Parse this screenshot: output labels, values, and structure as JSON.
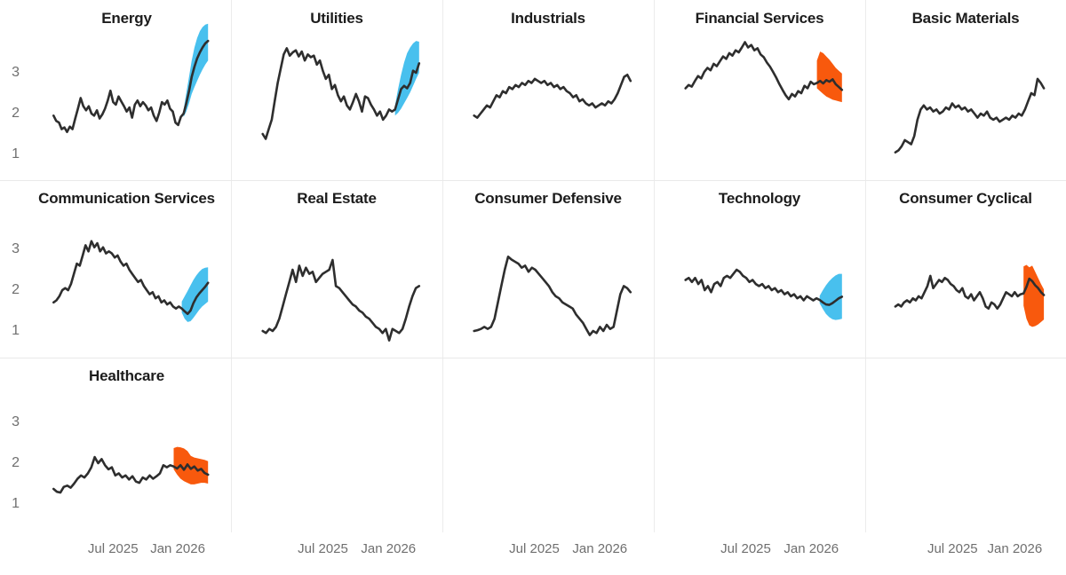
{
  "colors": {
    "history_line": "#2e2e2e",
    "forecast_up_band": "#48c0ee",
    "forecast_down_band": "#f8590d",
    "separator": "#ececec",
    "tick_label": "#6f6f6f",
    "title": "#1c1c1c"
  },
  "chart_data": {
    "type": "line",
    "title": "",
    "description": "Small-multiples of sector time series with shaded forecast bands (blue = upward forecast, orange = downward forecast)",
    "grid": {
      "rows": 3,
      "cols": 5
    },
    "x_axis": {
      "tick_labels": [
        "Jul 2025",
        "Jan 2026"
      ]
    },
    "y_axis": {
      "tick_labels": [
        3,
        2,
        1
      ],
      "range": [
        0.5,
        4.3
      ]
    },
    "facets": [
      {
        "title": "Energy",
        "row": 0,
        "col": 0,
        "forecast_direction": "up",
        "history": [
          1.95,
          1.82,
          1.78,
          1.62,
          1.66,
          1.55,
          1.68,
          1.62,
          1.88,
          2.12,
          2.38,
          2.18,
          2.08,
          2.18,
          2.0,
          1.95,
          2.08,
          1.88,
          1.98,
          2.12,
          2.32,
          2.56,
          2.28,
          2.22,
          2.42,
          2.3,
          2.18,
          2.05,
          2.15,
          1.9,
          2.22,
          2.32,
          2.18,
          2.28,
          2.2,
          2.08,
          2.15,
          1.95,
          1.82,
          2.02,
          2.28,
          2.22,
          2.32,
          2.12,
          2.05,
          1.78,
          1.72,
          1.92
        ],
        "forecast": {
          "mid": [
            2.0,
            2.25,
            2.55,
            2.9,
            3.15,
            3.35,
            3.5,
            3.62,
            3.72,
            3.78
          ],
          "lower": [
            1.92,
            2.05,
            2.25,
            2.48,
            2.65,
            2.8,
            2.95,
            3.08,
            3.2,
            3.3
          ],
          "upper": [
            2.1,
            2.5,
            2.9,
            3.3,
            3.62,
            3.85,
            4.02,
            4.12,
            4.18,
            4.2
          ]
        }
      },
      {
        "title": "Utilities",
        "row": 0,
        "col": 1,
        "forecast_direction": "up",
        "history": [
          1.5,
          1.38,
          1.62,
          1.85,
          2.3,
          2.75,
          3.1,
          3.45,
          3.6,
          3.42,
          3.5,
          3.55,
          3.4,
          3.52,
          3.3,
          3.45,
          3.38,
          3.42,
          3.2,
          3.3,
          3.05,
          2.85,
          2.95,
          2.6,
          2.7,
          2.45,
          2.3,
          2.42,
          2.2,
          2.1,
          2.28,
          2.48,
          2.3,
          2.05,
          2.42,
          2.38,
          2.22,
          2.1,
          1.95,
          2.05,
          1.85,
          1.95,
          2.1,
          2.05
        ],
        "forecast": {
          "mid": [
            2.1,
            2.35,
            2.6,
            2.68,
            2.62,
            2.75,
            3.05,
            3.0,
            3.23
          ],
          "lower": [
            1.95,
            2.02,
            2.12,
            2.25,
            2.38,
            2.52,
            2.68,
            2.85,
            3.0
          ],
          "upper": [
            2.2,
            2.6,
            2.95,
            3.25,
            3.48,
            3.62,
            3.72,
            3.78,
            3.76
          ]
        }
      },
      {
        "title": "Industrials",
        "row": 0,
        "col": 2,
        "forecast_direction": "none",
        "history": [
          1.95,
          1.9,
          2.0,
          2.1,
          2.2,
          2.15,
          2.3,
          2.45,
          2.4,
          2.55,
          2.5,
          2.65,
          2.6,
          2.7,
          2.65,
          2.75,
          2.7,
          2.8,
          2.75,
          2.85,
          2.8,
          2.75,
          2.8,
          2.7,
          2.75,
          2.65,
          2.7,
          2.6,
          2.65,
          2.55,
          2.5,
          2.4,
          2.45,
          2.3,
          2.35,
          2.25,
          2.2,
          2.25,
          2.15,
          2.2,
          2.25,
          2.2,
          2.3,
          2.25,
          2.35,
          2.5,
          2.7,
          2.9,
          2.95,
          2.8
        ],
        "forecast": null
      },
      {
        "title": "Financial Services",
        "row": 0,
        "col": 3,
        "forecast_direction": "down",
        "history": [
          2.62,
          2.7,
          2.66,
          2.8,
          2.92,
          2.86,
          3.02,
          3.12,
          3.06,
          3.22,
          3.16,
          3.28,
          3.4,
          3.34,
          3.48,
          3.42,
          3.55,
          3.5,
          3.62,
          3.75,
          3.62,
          3.68,
          3.55,
          3.6,
          3.45,
          3.38,
          3.25,
          3.15,
          3.02,
          2.88,
          2.72,
          2.58,
          2.45,
          2.35,
          2.48,
          2.42,
          2.55,
          2.5,
          2.68,
          2.62,
          2.78,
          2.72
        ],
        "forecast": {
          "mid": [
            2.75,
            2.8,
            2.74,
            2.82,
            2.78,
            2.84,
            2.72,
            2.65,
            2.58
          ],
          "lower": [
            2.62,
            2.55,
            2.48,
            2.42,
            2.38,
            2.34,
            2.32,
            2.3,
            2.28
          ],
          "upper": [
            3.3,
            3.52,
            3.48,
            3.4,
            3.32,
            3.22,
            3.12,
            3.05,
            2.98
          ]
        }
      },
      {
        "title": "Basic Materials",
        "row": 0,
        "col": 4,
        "forecast_direction": "none",
        "history": [
          1.05,
          1.1,
          1.2,
          1.35,
          1.3,
          1.25,
          1.45,
          1.85,
          2.1,
          2.2,
          2.1,
          2.15,
          2.05,
          2.1,
          2.0,
          2.05,
          2.15,
          2.1,
          2.25,
          2.15,
          2.2,
          2.1,
          2.15,
          2.05,
          2.1,
          2.0,
          1.9,
          2.0,
          1.95,
          2.05,
          1.9,
          1.85,
          1.9,
          1.8,
          1.85,
          1.9,
          1.85,
          1.95,
          1.9,
          2.0,
          1.95,
          2.1,
          2.3,
          2.5,
          2.45,
          2.85,
          2.75,
          2.62
        ],
        "forecast": null
      },
      {
        "title": "Communication Services",
        "row": 1,
        "col": 0,
        "forecast_direction": "up",
        "history": [
          1.7,
          1.75,
          1.85,
          2.0,
          2.05,
          2.0,
          2.15,
          2.4,
          2.65,
          2.6,
          2.85,
          3.1,
          2.95,
          3.2,
          3.05,
          3.15,
          2.95,
          3.05,
          2.9,
          2.95,
          2.9,
          2.8,
          2.85,
          2.7,
          2.6,
          2.65,
          2.5,
          2.4,
          2.3,
          2.2,
          2.25,
          2.1,
          2.0,
          1.9,
          1.95,
          1.8,
          1.85,
          1.7,
          1.75,
          1.65,
          1.7,
          1.6,
          1.55,
          1.6
        ],
        "forecast": {
          "mid": [
            1.55,
            1.48,
            1.42,
            1.5,
            1.68,
            1.82,
            1.92,
            2.0,
            2.08,
            2.18
          ],
          "lower": [
            1.45,
            1.3,
            1.22,
            1.24,
            1.32,
            1.42,
            1.52,
            1.6,
            1.66,
            1.72
          ],
          "upper": [
            1.72,
            1.85,
            1.98,
            2.12,
            2.25,
            2.36,
            2.45,
            2.52,
            2.55,
            2.56
          ]
        }
      },
      {
        "title": "Real Estate",
        "row": 1,
        "col": 1,
        "forecast_direction": "none",
        "history": [
          1.0,
          0.95,
          1.05,
          1.0,
          1.1,
          1.3,
          1.6,
          1.9,
          2.2,
          2.5,
          2.2,
          2.6,
          2.35,
          2.55,
          2.4,
          2.45,
          2.2,
          2.3,
          2.4,
          2.45,
          2.5,
          2.74,
          2.1,
          2.05,
          1.95,
          1.85,
          1.75,
          1.65,
          1.6,
          1.5,
          1.45,
          1.35,
          1.3,
          1.2,
          1.1,
          1.05,
          0.95,
          1.05,
          0.77,
          1.05,
          1.0,
          0.95,
          1.05,
          1.3,
          1.6,
          1.85,
          2.05,
          2.1
        ],
        "forecast": null
      },
      {
        "title": "Consumer Defensive",
        "row": 1,
        "col": 2,
        "forecast_direction": "none",
        "history": [
          1.0,
          1.02,
          1.05,
          1.1,
          1.05,
          1.1,
          1.3,
          1.7,
          2.1,
          2.5,
          2.82,
          2.75,
          2.7,
          2.65,
          2.55,
          2.6,
          2.45,
          2.55,
          2.5,
          2.4,
          2.3,
          2.2,
          2.1,
          1.95,
          1.85,
          1.8,
          1.7,
          1.65,
          1.6,
          1.55,
          1.4,
          1.3,
          1.2,
          1.05,
          0.9,
          1.0,
          0.95,
          1.1,
          1.0,
          1.15,
          1.05,
          1.1,
          1.5,
          1.9,
          2.1,
          2.05,
          1.95
        ],
        "forecast": null
      },
      {
        "title": "Technology",
        "row": 1,
        "col": 3,
        "forecast_direction": "up",
        "history": [
          2.25,
          2.3,
          2.2,
          2.3,
          2.15,
          2.25,
          2.0,
          2.1,
          1.95,
          2.15,
          2.2,
          2.1,
          2.3,
          2.35,
          2.3,
          2.4,
          2.5,
          2.45,
          2.35,
          2.3,
          2.2,
          2.25,
          2.15,
          2.1,
          2.15,
          2.05,
          2.1,
          2.0,
          2.05,
          1.95,
          2.0,
          1.9,
          1.95,
          1.85,
          1.9,
          1.8,
          1.85,
          1.75,
          1.85,
          1.8,
          1.75,
          1.8
        ],
        "forecast": {
          "mid": [
            1.76,
            1.7,
            1.65,
            1.64,
            1.68,
            1.74,
            1.8,
            1.84
          ],
          "lower": [
            1.68,
            1.54,
            1.42,
            1.34,
            1.29,
            1.27,
            1.28,
            1.3
          ],
          "upper": [
            1.86,
            2.0,
            2.12,
            2.22,
            2.3,
            2.36,
            2.4,
            2.4
          ]
        }
      },
      {
        "title": "Consumer Cyclical",
        "row": 1,
        "col": 4,
        "forecast_direction": "down",
        "history": [
          1.6,
          1.65,
          1.6,
          1.7,
          1.75,
          1.7,
          1.8,
          1.75,
          1.85,
          1.8,
          1.95,
          2.1,
          2.35,
          2.05,
          2.15,
          2.25,
          2.2,
          2.3,
          2.25,
          2.15,
          2.1,
          2.0,
          1.95,
          2.05,
          1.85,
          1.8,
          1.9,
          1.75,
          1.85,
          1.95,
          1.8,
          1.6,
          1.55,
          1.7,
          1.65,
          1.55,
          1.65,
          1.8,
          1.95,
          1.9,
          1.85,
          1.95,
          1.85,
          1.9
        ],
        "forecast": {
          "mid": [
            1.92,
            2.08,
            2.28,
            2.22,
            2.12,
            2.05,
            1.95,
            1.88
          ],
          "lower": [
            1.62,
            1.3,
            1.14,
            1.1,
            1.12,
            1.16,
            1.22,
            1.28
          ],
          "upper": [
            2.58,
            2.62,
            2.56,
            2.6,
            2.45,
            2.3,
            2.15,
            2.02
          ]
        }
      },
      {
        "title": "Healthcare",
        "row": 2,
        "col": 0,
        "forecast_direction": "down",
        "history": [
          1.37,
          1.3,
          1.28,
          1.42,
          1.45,
          1.4,
          1.5,
          1.62,
          1.7,
          1.65,
          1.75,
          1.9,
          2.15,
          2.0,
          2.1,
          1.95,
          1.85,
          1.9,
          1.7,
          1.75,
          1.65,
          1.7,
          1.6,
          1.68,
          1.55,
          1.52,
          1.65,
          1.6,
          1.7,
          1.62,
          1.68,
          1.75,
          1.95,
          1.9,
          1.95
        ],
        "forecast": {
          "mid": [
            1.92,
            1.87,
            1.95,
            1.84,
            1.97,
            1.86,
            1.92,
            1.82,
            1.86,
            1.76,
            1.72
          ],
          "lower": [
            1.85,
            1.72,
            1.62,
            1.56,
            1.52,
            1.48,
            1.48,
            1.5,
            1.52,
            1.52,
            1.5
          ],
          "upper": [
            2.37,
            2.4,
            2.39,
            2.36,
            2.3,
            2.18,
            2.14,
            2.12,
            2.1,
            2.08,
            2.05
          ]
        }
      }
    ]
  }
}
